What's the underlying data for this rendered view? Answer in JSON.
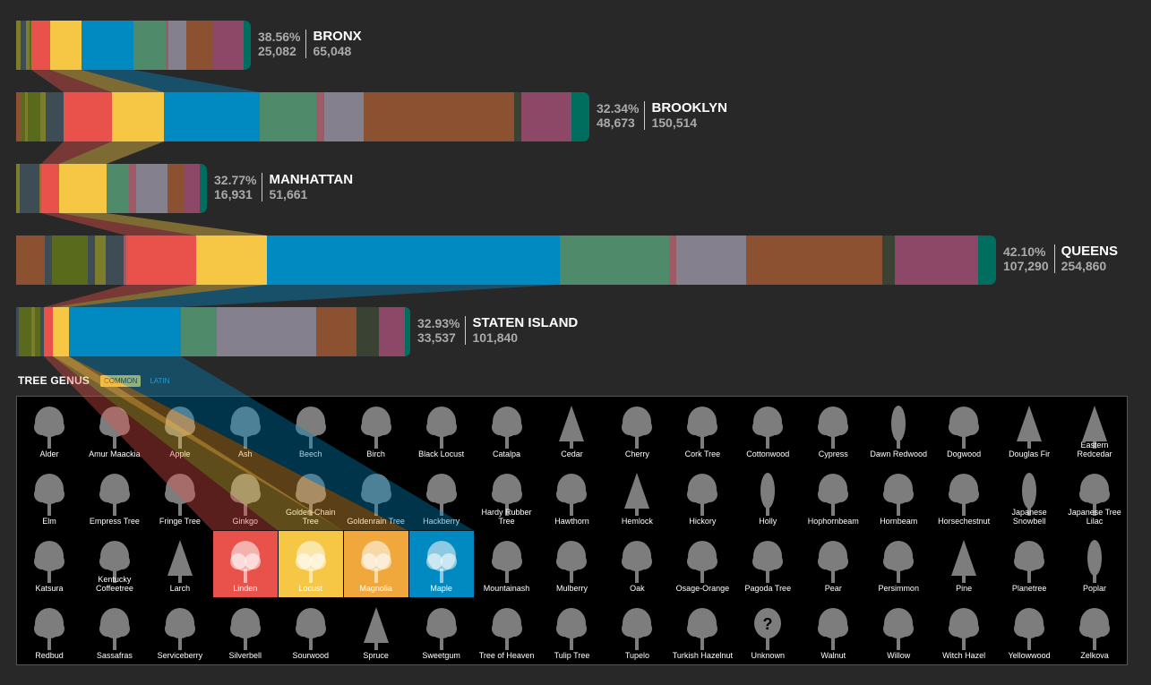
{
  "legend": {
    "title": "TREE GENUS",
    "common_label": "COMMON",
    "latin_label": "LATIN"
  },
  "colors": {
    "olive": "#7b7c2c",
    "darkolive": "#596a1c",
    "slate": "#3e4c55",
    "red": "#e8524b",
    "yellow": "#f6c744",
    "blue": "#0189c2",
    "green": "#4f8a6a",
    "rose": "#9c5b67",
    "grey": "#85808e",
    "brown": "#8c5131",
    "darkgreen": "#3a4333",
    "plum": "#8e4867",
    "teal": "#006e5e",
    "highlight_linden": "#e8524b",
    "highlight_locust": "#f6c744",
    "highlight_magnolia": "#f0a83c",
    "highlight_maple": "#0189c2"
  },
  "chart_data": {
    "type": "bar",
    "title": "",
    "series_unit": "trees",
    "boroughs": [
      {
        "name": "BRONX",
        "pct": "38.56%",
        "count": "25,082",
        "total": "65,048",
        "segments": [
          [
            "olive",
            5
          ],
          [
            "slate",
            6
          ],
          [
            "olive",
            4
          ],
          [
            "darkolive",
            2
          ],
          [
            "red",
            21
          ],
          [
            "yellow",
            35
          ],
          [
            "blue",
            58
          ],
          [
            "green",
            36
          ],
          [
            "rose",
            3
          ],
          [
            "grey",
            20
          ],
          [
            "brown",
            30
          ],
          [
            "plum",
            34
          ],
          [
            "teal",
            8
          ]
        ]
      },
      {
        "name": "BROOKLYN",
        "pct": "32.34%",
        "count": "48,673",
        "total": "150,514",
        "segments": [
          [
            "brown",
            6
          ],
          [
            "darkolive",
            4
          ],
          [
            "olive",
            3
          ],
          [
            "darkolive",
            14
          ],
          [
            "olive",
            6
          ],
          [
            "slate",
            20
          ],
          [
            "red",
            54
          ],
          [
            "yellow",
            58
          ],
          [
            "blue",
            107
          ],
          [
            "green",
            63
          ],
          [
            "rose",
            9
          ],
          [
            "grey",
            44
          ],
          [
            "brown",
            168
          ],
          [
            "darkgreen",
            8
          ],
          [
            "plum",
            56
          ],
          [
            "teal",
            20
          ]
        ]
      },
      {
        "name": "MANHATTAN",
        "pct": "32.77%",
        "count": "16,931",
        "total": "51,661",
        "segments": [
          [
            "olive",
            4
          ],
          [
            "slate",
            22
          ],
          [
            "olive",
            2
          ],
          [
            "red",
            20
          ],
          [
            "yellow",
            53
          ],
          [
            "green",
            25
          ],
          [
            "rose",
            8
          ],
          [
            "grey",
            35
          ],
          [
            "brown",
            19
          ],
          [
            "plum",
            17
          ],
          [
            "teal",
            8
          ]
        ]
      },
      {
        "name": "QUEENS",
        "pct": "42.10%",
        "count": "107,290",
        "total": "254,860",
        "segments": [
          [
            "brown",
            32
          ],
          [
            "slate",
            8
          ],
          [
            "darkolive",
            40
          ],
          [
            "slate",
            8
          ],
          [
            "olive",
            12
          ],
          [
            "slate",
            20
          ],
          [
            "rose",
            3
          ],
          [
            "red",
            78
          ],
          [
            "yellow",
            79
          ],
          [
            "blue",
            327
          ],
          [
            "green",
            122
          ],
          [
            "rose",
            8
          ],
          [
            "grey",
            78
          ],
          [
            "brown",
            6
          ],
          [
            "brown",
            146
          ],
          [
            "darkgreen",
            14
          ],
          [
            "plum",
            93
          ],
          [
            "teal",
            20
          ]
        ]
      },
      {
        "name": "STATEN ISLAND",
        "pct": "32.93%",
        "count": "33,537",
        "total": "101,840",
        "segments": [
          [
            "slate",
            3
          ],
          [
            "darkolive",
            14
          ],
          [
            "olive",
            4
          ],
          [
            "darkolive",
            6
          ],
          [
            "slate",
            4
          ],
          [
            "red",
            10
          ],
          [
            "yellow",
            18
          ],
          [
            "blue",
            125
          ],
          [
            "green",
            40
          ],
          [
            "grey",
            111
          ],
          [
            "brown",
            45
          ],
          [
            "darkgreen",
            25
          ],
          [
            "plum",
            29
          ],
          [
            "teal",
            6
          ]
        ]
      }
    ]
  },
  "genera": [
    "Alder",
    "Amur Maackia",
    "Apple",
    "Ash",
    "Beech",
    "Birch",
    "Black Locust",
    "Catalpa",
    "Cedar",
    "Cherry",
    "Cork Tree",
    "Cottonwood",
    "Cypress",
    "Dawn Redwood",
    "Dogwood",
    "Douglas Fir",
    "Eastern Redcedar",
    "Elm",
    "Empress Tree",
    "Fringe Tree",
    "Ginkgo",
    "Golden-Chain Tree",
    "Goldenrain Tree",
    "Hackberry",
    "Hardy Rubber Tree",
    "Hawthorn",
    "Hemlock",
    "Hickory",
    "Holly",
    "Hophornbeam",
    "Hornbeam",
    "Horsechestnut",
    "Japanese Snowbell",
    "Japanese Tree Lilac",
    "Katsura",
    "Kentucky Coffeetree",
    "Larch",
    "Linden",
    "Locust",
    "Magnolia",
    "Maple",
    "Mountainash",
    "Mulberry",
    "Oak",
    "Osage-Orange",
    "Pagoda Tree",
    "Pear",
    "Persimmon",
    "Pine",
    "Planetree",
    "Poplar",
    "Redbud",
    "Sassafras",
    "Serviceberry",
    "Silverbell",
    "Sourwood",
    "Spruce",
    "Sweetgum",
    "Tree of Heaven",
    "Tulip Tree",
    "Tupelo",
    "Turkish Hazelnut",
    "Unknown",
    "Walnut",
    "Willow",
    "Witch Hazel",
    "Yellowwood",
    "Zelkova"
  ],
  "unknown_glyph": "?"
}
